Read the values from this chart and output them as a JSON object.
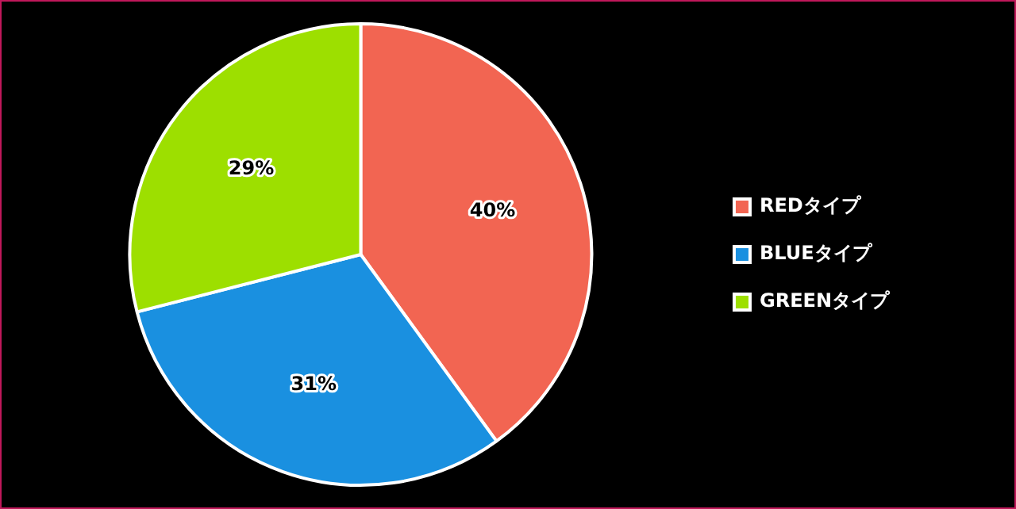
{
  "chart_data": {
    "type": "pie",
    "categories": [
      "REDタイプ",
      "BLUEタイプ",
      "GREENタイプ"
    ],
    "values": [
      40,
      31,
      29
    ],
    "value_labels": [
      "40%",
      "31%",
      "29%"
    ],
    "colors": [
      "#f26552",
      "#1a90e0",
      "#9ddf00"
    ],
    "legend": "right"
  }
}
